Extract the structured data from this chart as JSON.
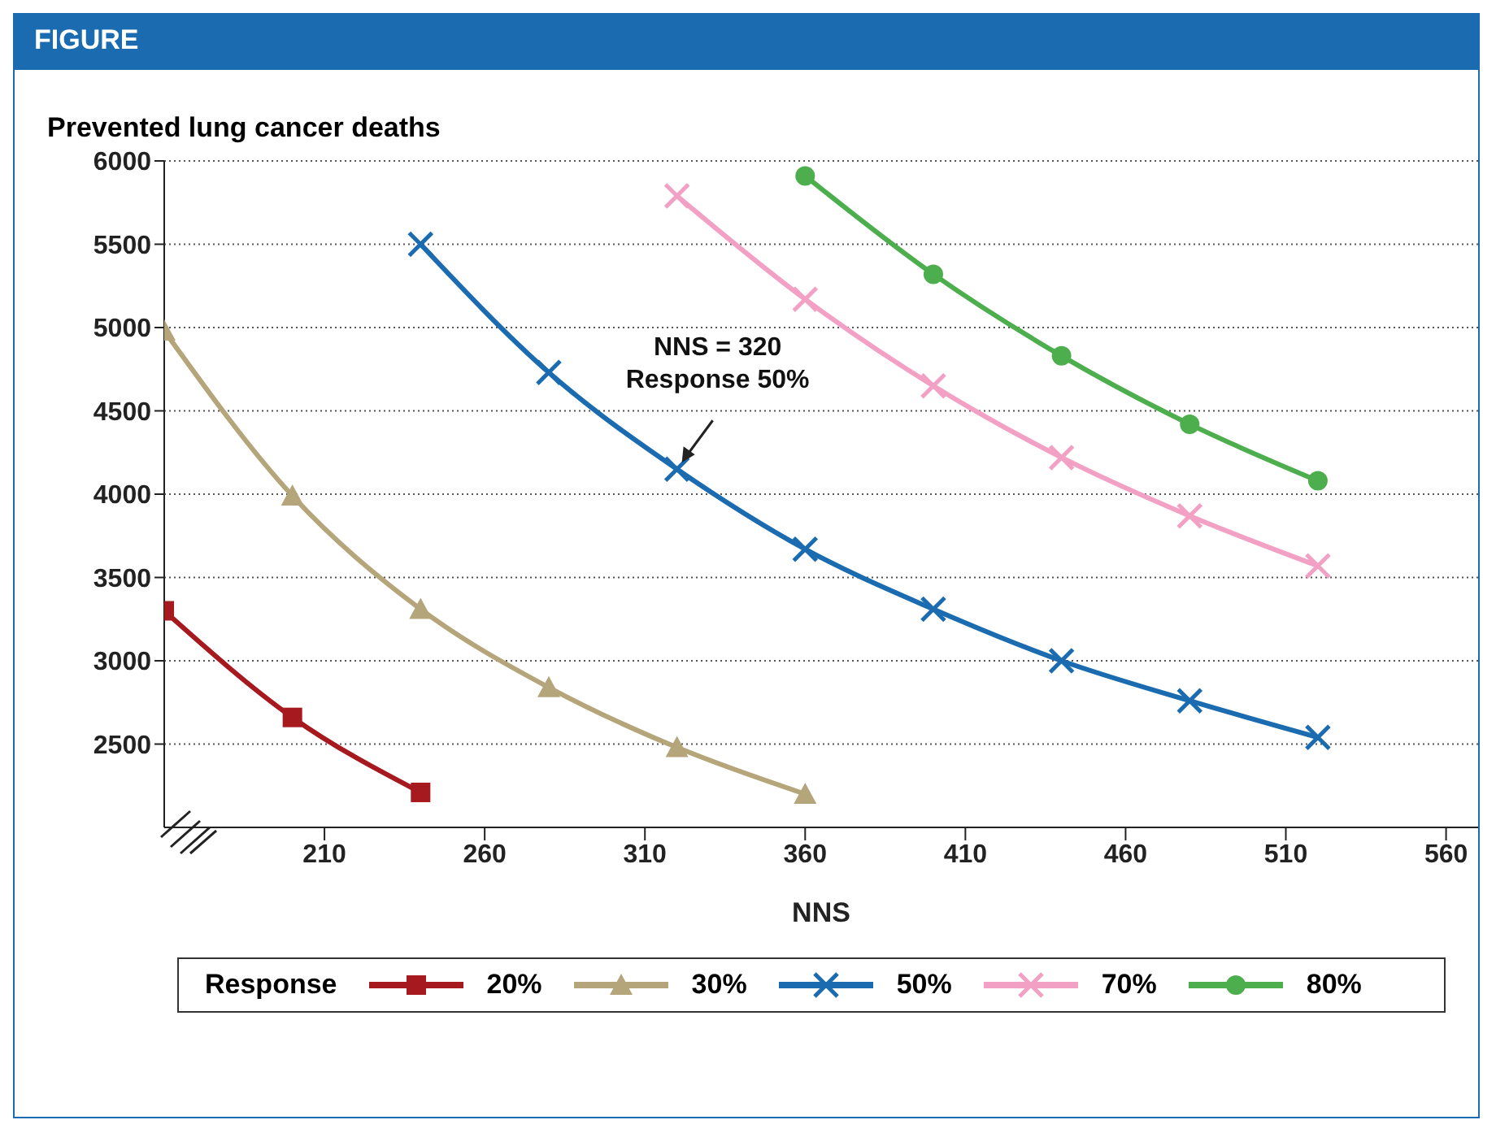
{
  "chart_data": {
    "type": "line",
    "title": "FIGURE",
    "ylabel": "Prevented lung cancer deaths",
    "xlabel": "NNS",
    "legend_title": "Response",
    "legend": "bottom",
    "grid": "y",
    "line_style": "solid",
    "xlim": [
      160,
      570
    ],
    "xticks": [
      210,
      260,
      310,
      360,
      410,
      460,
      510,
      560
    ],
    "ylim": [
      2000,
      6000
    ],
    "yticks": [
      2500,
      3000,
      3500,
      4000,
      4500,
      5000,
      5500,
      6000
    ],
    "series": [
      {
        "name": "20%",
        "color": "#a6191e",
        "marker": "square",
        "x": [
          160,
          200,
          240
        ],
        "values": [
          3300,
          2660,
          2210
        ]
      },
      {
        "name": "30%",
        "color": "#b5a57a",
        "marker": "triangle",
        "x": [
          160,
          200,
          240,
          280,
          320,
          360
        ],
        "values": [
          4980,
          3990,
          3310,
          2840,
          2480,
          2200
        ]
      },
      {
        "name": "50%",
        "color": "#1a6bb0",
        "marker": "cross",
        "x": [
          240,
          280,
          320,
          360,
          400,
          440,
          480,
          520
        ],
        "values": [
          5500,
          4730,
          4150,
          3670,
          3310,
          3000,
          2760,
          2540
        ]
      },
      {
        "name": "70%",
        "color": "#f2a0c4",
        "marker": "cross",
        "x": [
          320,
          360,
          400,
          440,
          480,
          520
        ],
        "values": [
          5790,
          5170,
          4650,
          4220,
          3870,
          3570
        ]
      },
      {
        "name": "80%",
        "color": "#4cae4c",
        "marker": "circle",
        "x": [
          360,
          400,
          440,
          480,
          520
        ],
        "values": [
          5910,
          5320,
          4830,
          4420,
          4080
        ]
      }
    ],
    "annotations": [
      {
        "text": "NNS = 320\nResponse 50%",
        "x": 320,
        "y": 4150
      }
    ]
  }
}
